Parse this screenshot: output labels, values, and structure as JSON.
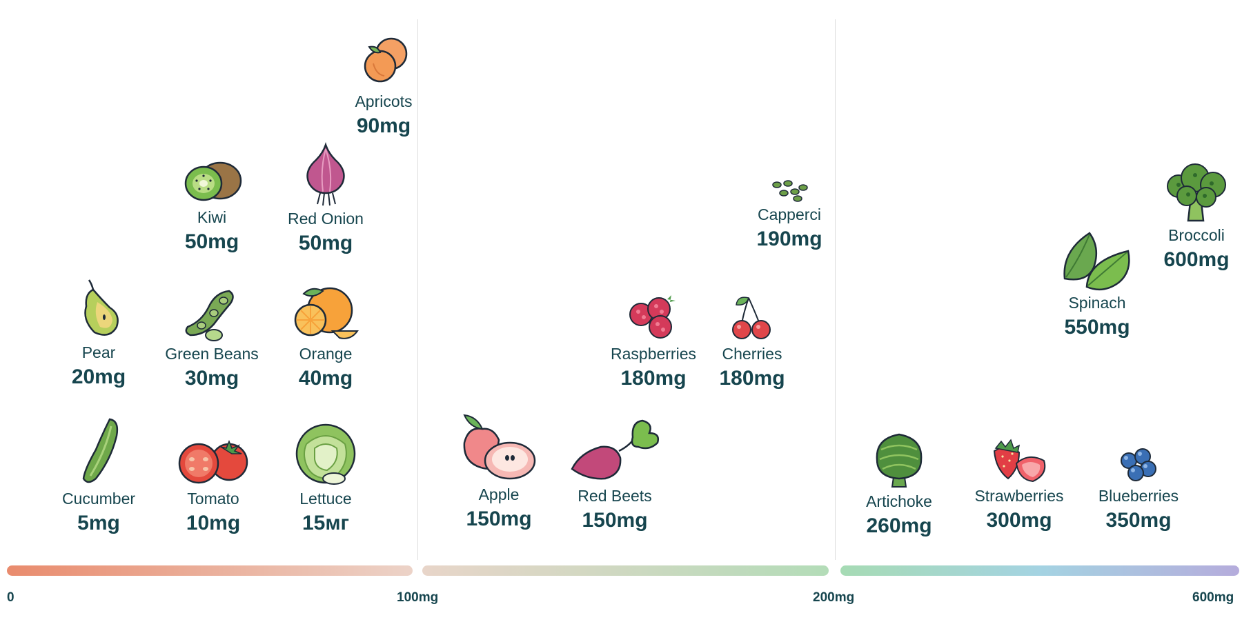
{
  "foods": [
    {
      "key": "apricots",
      "name": "Apricots",
      "value": "90mg",
      "icon": "apricot-icon"
    },
    {
      "key": "kiwi",
      "name": "Kiwi",
      "value": "50mg",
      "icon": "kiwi-icon"
    },
    {
      "key": "red-onion",
      "name": "Red Onion",
      "value": "50mg",
      "icon": "onion-icon"
    },
    {
      "key": "pear",
      "name": "Pear",
      "value": "20mg",
      "icon": "pear-icon"
    },
    {
      "key": "green-beans",
      "name": "Green Beans",
      "value": "30mg",
      "icon": "green-beans-icon"
    },
    {
      "key": "orange",
      "name": "Orange",
      "value": "40mg",
      "icon": "orange-icon"
    },
    {
      "key": "cucumber",
      "name": "Cucumber",
      "value": "5mg",
      "icon": "cucumber-icon"
    },
    {
      "key": "tomato",
      "name": "Tomato",
      "value": "10mg",
      "icon": "tomato-icon"
    },
    {
      "key": "lettuce",
      "name": "Lettuce",
      "value": "15мг",
      "icon": "lettuce-icon"
    },
    {
      "key": "capperci",
      "name": "Capperci",
      "value": "190mg",
      "icon": "capers-icon"
    },
    {
      "key": "raspberries",
      "name": "Raspberries",
      "value": "180mg",
      "icon": "raspberries-icon"
    },
    {
      "key": "cherries",
      "name": "Cherries",
      "value": "180mg",
      "icon": "cherries-icon"
    },
    {
      "key": "apple",
      "name": "Apple",
      "value": "150mg",
      "icon": "apple-icon"
    },
    {
      "key": "red-beets",
      "name": "Red Beets",
      "value": "150mg",
      "icon": "beet-icon"
    },
    {
      "key": "broccoli",
      "name": "Broccoli",
      "value": "600mg",
      "icon": "broccoli-icon"
    },
    {
      "key": "spinach",
      "name": "Spinach",
      "value": "550mg",
      "icon": "spinach-icon"
    },
    {
      "key": "artichoke",
      "name": "Artichoke",
      "value": "260mg",
      "icon": "artichoke-icon"
    },
    {
      "key": "strawberries",
      "name": "Strawberries",
      "value": "300mg",
      "icon": "strawberries-icon"
    },
    {
      "key": "blueberries",
      "name": "Blueberries",
      "value": "350mg",
      "icon": "blueberries-icon"
    }
  ],
  "scale": {
    "ticks": [
      "0",
      "100mg",
      "200mg",
      "600mg"
    ],
    "segments": [
      {
        "from": "#e98b6d",
        "to": "#ecd3c8"
      },
      {
        "from": "#e8d5c9",
        "to": "#b3dcb8"
      },
      {
        "from": "#a6dbb4",
        "via": "#a4d3e2",
        "to": "#b5acdc"
      }
    ]
  }
}
